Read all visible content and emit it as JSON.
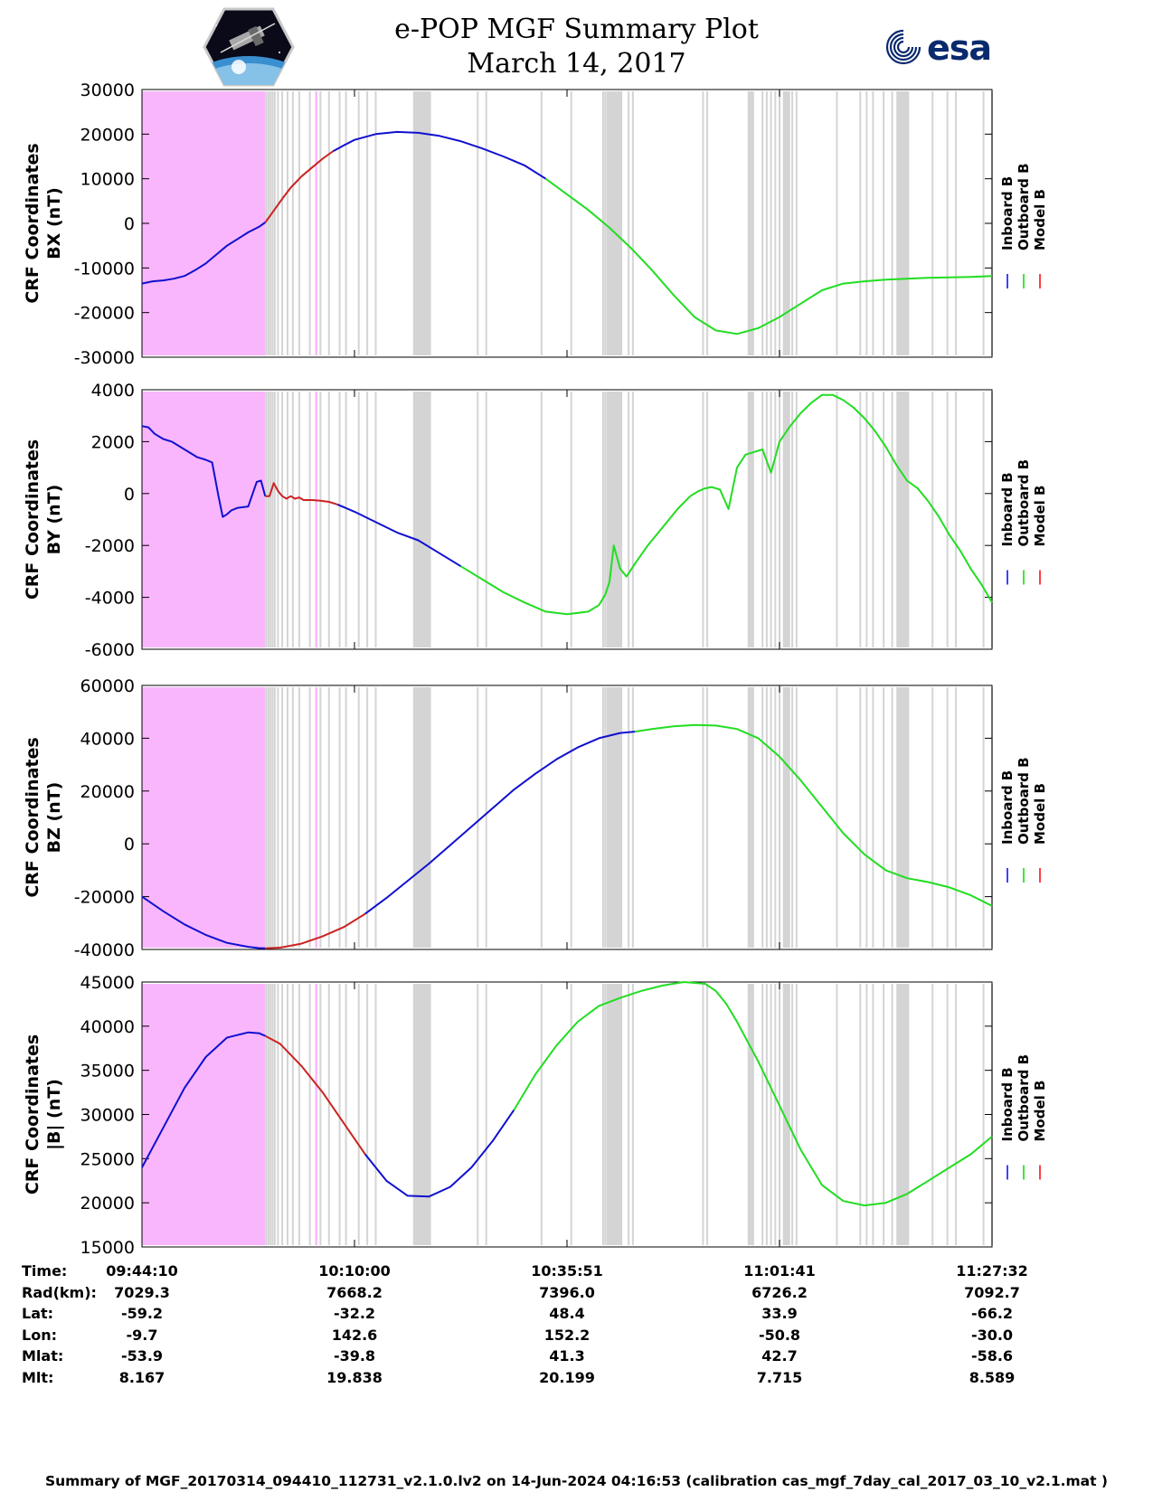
{
  "header": {
    "title_line1": "e-POP MGF Summary Plot",
    "title_line2": "March 14, 2017",
    "logo_left": "cassiope-satellite-logo",
    "logo_right_text": "esa"
  },
  "legend": {
    "entries": [
      "Inboard B",
      "Outboard B",
      "Model B"
    ],
    "colors": [
      "#0000ff",
      "#00dd00",
      "#ff0000"
    ]
  },
  "colors": {
    "inboard": "#1010d0",
    "outboard": "#22dd22",
    "model": "#cc2222",
    "magenta_region": "#f9b6fc",
    "gray_band": "#d4d4d4"
  },
  "chart_data": [
    {
      "type": "line",
      "ylabel_line1": "CRF Coordinates",
      "ylabel_line2": "BX (nT)",
      "ylim": [
        -30000,
        30000
      ],
      "ytick_labels": [
        "30000",
        "20000",
        "10000",
        "0",
        "-10000",
        "-20000",
        "-30000"
      ],
      "ytick_values": [
        30000,
        20000,
        10000,
        0,
        -10000,
        -20000,
        -30000
      ],
      "series": [
        {
          "color_key": "inboard",
          "x": [
            0,
            5,
            10,
            15,
            20,
            25,
            30,
            35,
            40,
            45,
            50,
            55,
            58
          ],
          "y": [
            -13500,
            -13000,
            -12800,
            -12400,
            -11800,
            -10500,
            -9000,
            -7000,
            -5000,
            -3500,
            -2000,
            -800,
            200
          ]
        },
        {
          "color_key": "model",
          "x": [
            58,
            60,
            63,
            66,
            70,
            75,
            80,
            85,
            90
          ],
          "y": [
            200,
            1500,
            3500,
            5500,
            8000,
            10500,
            12500,
            14500,
            16200
          ]
        },
        {
          "color_key": "inboard",
          "x": [
            90,
            95,
            100,
            110,
            120,
            130,
            140,
            150,
            160,
            170,
            175,
            180,
            190
          ],
          "y": [
            16200,
            17500,
            18700,
            20000,
            20500,
            20300,
            19600,
            18400,
            16800,
            15000,
            14000,
            13000,
            10000
          ]
        },
        {
          "color_key": "outboard",
          "x": [
            190,
            200,
            210,
            220,
            230,
            240,
            250,
            260,
            270,
            280,
            290,
            300,
            310,
            320,
            330,
            340,
            350,
            360,
            370,
            380,
            390,
            395,
            400
          ],
          "y": [
            10000,
            6500,
            3000,
            -1000,
            -5500,
            -10500,
            -16000,
            -21000,
            -24000,
            -24800,
            -23500,
            -21000,
            -18000,
            -15000,
            -13500,
            -13000,
            -12600,
            -12400,
            -12200,
            -12100,
            -12000,
            -11900,
            -11800
          ]
        }
      ]
    },
    {
      "type": "line",
      "ylabel_line1": "CRF Coordinates",
      "ylabel_line2": "BY (nT)",
      "ylim": [
        -6000,
        4000
      ],
      "ytick_labels": [
        "4000",
        "2000",
        "0",
        "-2000",
        "-4000",
        "-6000"
      ],
      "ytick_values": [
        4000,
        2000,
        0,
        -2000,
        -4000,
        -6000
      ],
      "series": [
        {
          "color_key": "inboard",
          "x": [
            0,
            3,
            6,
            10,
            14,
            18,
            22,
            26,
            30,
            33,
            36,
            38,
            40,
            42,
            45,
            50,
            54,
            56,
            58
          ],
          "y": [
            2600,
            2550,
            2300,
            2100,
            2000,
            1800,
            1600,
            1400,
            1300,
            1200,
            -100,
            -900,
            -800,
            -650,
            -550,
            -500,
            450,
            500,
            -100
          ]
        },
        {
          "color_key": "model",
          "x": [
            58,
            60,
            62,
            64,
            66,
            68,
            70,
            72,
            74,
            76,
            78,
            80,
            84,
            88,
            92
          ],
          "y": [
            -100,
            -100,
            400,
            100,
            -100,
            -200,
            -100,
            -200,
            -150,
            -250,
            -250,
            -250,
            -280,
            -320,
            -420
          ]
        },
        {
          "color_key": "inboard",
          "x": [
            92,
            100,
            110,
            120,
            130,
            140,
            150
          ],
          "y": [
            -420,
            -700,
            -1100,
            -1500,
            -1800,
            -2300,
            -2800
          ]
        },
        {
          "color_key": "outboard",
          "x": [
            150,
            160,
            170,
            180,
            190,
            200,
            210,
            215,
            218,
            220,
            222,
            225,
            228,
            232,
            238,
            245,
            252,
            258,
            262,
            265,
            268,
            272,
            276,
            280,
            284,
            288,
            292,
            296,
            300,
            305,
            310,
            315,
            320,
            325,
            330,
            335,
            340,
            345,
            350,
            355,
            360,
            365,
            370,
            375,
            380,
            385,
            390,
            395,
            400
          ],
          "y": [
            -2800,
            -3300,
            -3800,
            -4200,
            -4550,
            -4650,
            -4550,
            -4300,
            -3900,
            -3400,
            -2000,
            -2900,
            -3200,
            -2700,
            -2000,
            -1300,
            -600,
            -100,
            100,
            200,
            250,
            150,
            -600,
            1000,
            1500,
            1600,
            1700,
            800,
            2000,
            2600,
            3100,
            3500,
            3800,
            3800,
            3600,
            3300,
            2900,
            2400,
            1800,
            1100,
            500,
            200,
            -300,
            -900,
            -1600,
            -2200,
            -2900,
            -3500,
            -4200
          ]
        }
      ]
    },
    {
      "type": "line",
      "ylabel_line1": "CRF Coordinates",
      "ylabel_line2": "BZ (nT)",
      "ylim": [
        -40000,
        60000
      ],
      "ytick_labels": [
        "60000",
        "40000",
        "20000",
        "0",
        "-20000",
        "-40000"
      ],
      "ytick_values": [
        60000,
        40000,
        20000,
        0,
        -20000,
        -40000
      ],
      "series": [
        {
          "color_key": "inboard",
          "x": [
            0,
            10,
            20,
            30,
            40,
            50,
            55,
            58
          ],
          "y": [
            -20000,
            -25500,
            -30500,
            -34500,
            -37500,
            -39000,
            -39500,
            -39600
          ]
        },
        {
          "color_key": "model",
          "x": [
            58,
            65,
            75,
            85,
            95,
            105
          ],
          "y": [
            -39600,
            -39300,
            -37800,
            -35000,
            -31500,
            -26500
          ]
        },
        {
          "color_key": "inboard",
          "x": [
            105,
            115,
            125,
            135,
            145,
            155,
            165,
            175,
            185,
            195,
            205,
            215,
            225,
            232
          ],
          "y": [
            -26500,
            -20500,
            -14000,
            -7500,
            -500,
            6500,
            13500,
            20500,
            26500,
            32000,
            36500,
            40000,
            42000,
            42500
          ]
        },
        {
          "color_key": "outboard",
          "x": [
            232,
            240,
            250,
            260,
            270,
            280,
            290,
            300,
            310,
            320,
            330,
            340,
            350,
            360,
            370,
            380,
            390,
            400
          ],
          "y": [
            42500,
            43500,
            44500,
            45000,
            44800,
            43500,
            40000,
            33000,
            24000,
            14000,
            4000,
            -4000,
            -10000,
            -13000,
            -14500,
            -16500,
            -19500,
            -23500
          ]
        }
      ]
    },
    {
      "type": "line",
      "ylabel_line1": "CRF Coordinates",
      "ylabel_line2": "|B| (nT)",
      "ylim": [
        15000,
        45000
      ],
      "ytick_labels": [
        "45000",
        "40000",
        "35000",
        "30000",
        "25000",
        "20000",
        "15000"
      ],
      "ytick_values": [
        45000,
        40000,
        35000,
        30000,
        25000,
        20000,
        15000
      ],
      "series": [
        {
          "color_key": "inboard",
          "x": [
            0,
            10,
            20,
            30,
            40,
            50,
            55,
            58
          ],
          "y": [
            24000,
            28500,
            33000,
            36500,
            38700,
            39300,
            39200,
            38900
          ]
        },
        {
          "color_key": "model",
          "x": [
            58,
            65,
            75,
            85,
            95,
            105
          ],
          "y": [
            38900,
            38000,
            35500,
            32500,
            29000,
            25500
          ]
        },
        {
          "color_key": "inboard",
          "x": [
            105,
            115,
            125,
            135,
            145,
            155,
            165,
            175
          ],
          "y": [
            25500,
            22500,
            20800,
            20700,
            21800,
            24000,
            27000,
            30500
          ]
        },
        {
          "color_key": "outboard",
          "x": [
            175,
            185,
            195,
            205,
            215,
            225,
            235,
            245,
            255,
            265,
            270,
            275,
            280,
            290,
            300,
            310,
            320,
            330,
            340,
            350,
            360,
            370,
            380,
            390,
            400
          ],
          "y": [
            30500,
            34500,
            37800,
            40500,
            42300,
            43200,
            44000,
            44600,
            45000,
            44800,
            44000,
            42500,
            40500,
            36000,
            31000,
            26000,
            22000,
            20200,
            19700,
            20000,
            21000,
            22500,
            24000,
            25500,
            27500
          ]
        }
      ]
    }
  ],
  "shading": {
    "magenta_regions": [
      [
        0,
        58
      ],
      [
        81.5,
        82.5
      ]
    ],
    "gray_lines": [
      58.5,
      59.5,
      60.5,
      61.5,
      62.5,
      64,
      66,
      68.5,
      71,
      74,
      79,
      84,
      88,
      93,
      96,
      102,
      106,
      110,
      128,
      131,
      133,
      135,
      158,
      162,
      188,
      202,
      217,
      218,
      219,
      220,
      221,
      223,
      225,
      229,
      231,
      264,
      266,
      292,
      294,
      296,
      298,
      300,
      302,
      306,
      308,
      327,
      338,
      341,
      344,
      349,
      353,
      356,
      372,
      379,
      383,
      396,
      400
    ],
    "gray_bands": [
      [
        128,
        136
      ],
      [
        219,
        226
      ],
      [
        285,
        288
      ],
      [
        302,
        305
      ],
      [
        355,
        361
      ]
    ]
  },
  "x_axis": {
    "tick_positions": [
      0,
      100,
      200,
      300,
      400
    ],
    "rows": [
      {
        "label": "Time:",
        "values": [
          "09:44:10",
          "10:10:00",
          "10:35:51",
          "11:01:41",
          "11:27:32"
        ]
      },
      {
        "label": "Rad(km):",
        "values": [
          "7029.3",
          "7668.2",
          "7396.0",
          "6726.2",
          "7092.7"
        ]
      },
      {
        "label": "Lat:",
        "values": [
          "-59.2",
          "-32.2",
          "48.4",
          "33.9",
          "-66.2"
        ]
      },
      {
        "label": "Lon:",
        "values": [
          "-9.7",
          "142.6",
          "152.2",
          "-50.8",
          "-30.0"
        ]
      },
      {
        "label": "Mlat:",
        "values": [
          "-53.9",
          "-39.8",
          "41.3",
          "42.7",
          "-58.6"
        ]
      },
      {
        "label": "Mlt:",
        "values": [
          "8.167",
          "19.838",
          "20.199",
          "7.715",
          "8.589"
        ]
      }
    ]
  },
  "footer": "Summary of MGF_20170314_094410_112731_v2.1.0.lv2 on 14-Jun-2024 04:16:53 (calibration cas_mgf_7day_cal_2017_03_10_v2.1.mat )"
}
